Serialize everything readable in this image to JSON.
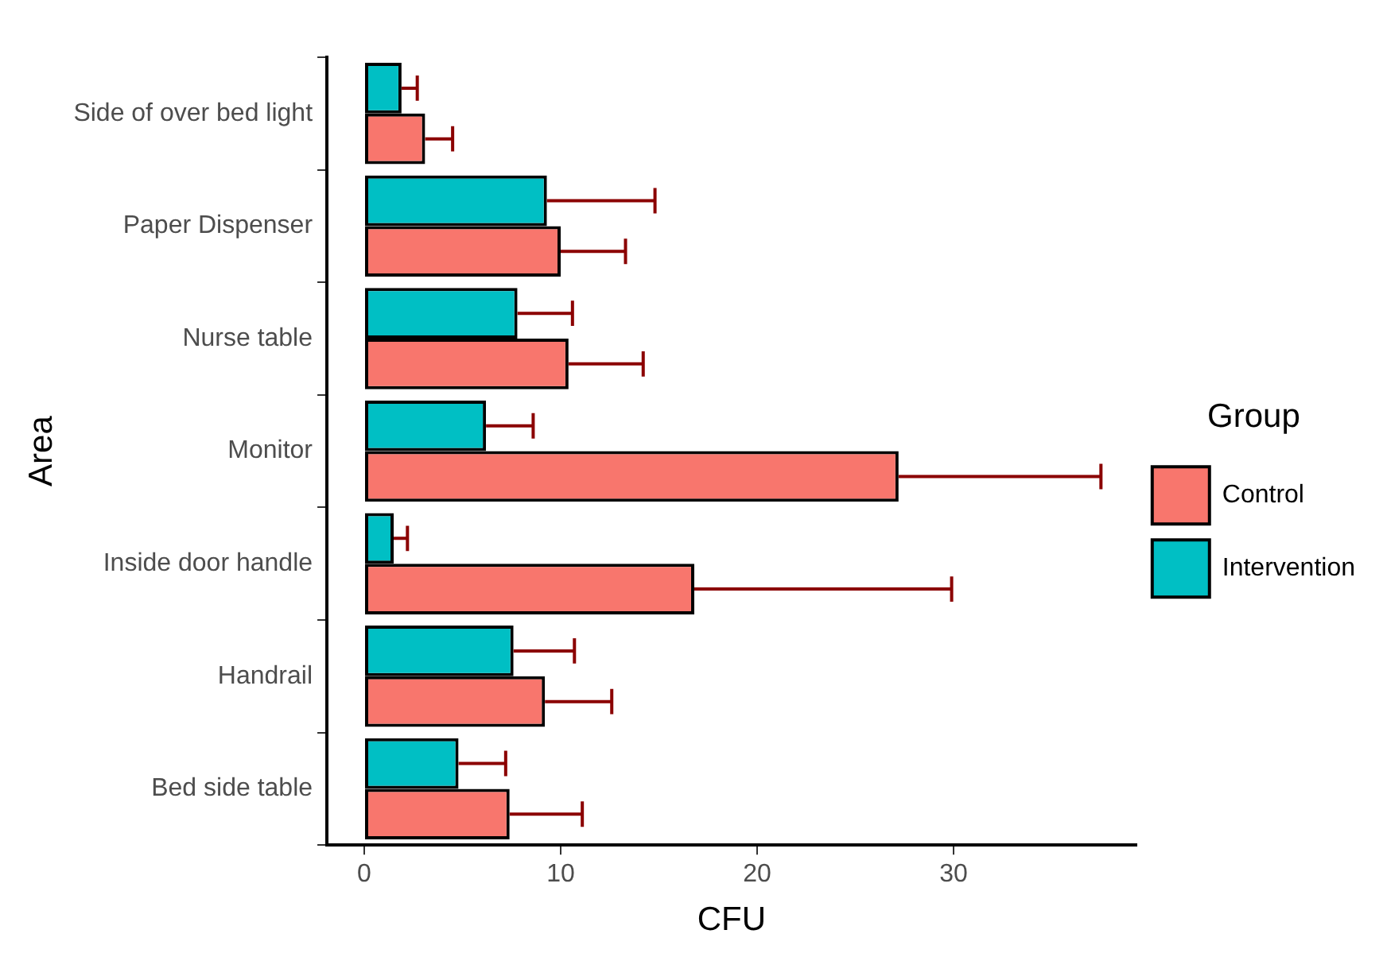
{
  "chart_data": {
    "type": "bar",
    "orientation": "horizontal",
    "xlabel": "CFU",
    "ylabel": "Area",
    "legend_title": "Group",
    "legend": "right",
    "categories": [
      "Side of over bed light",
      "Paper Dispenser",
      "Nurse table",
      "Monitor",
      "Inside door handle",
      "Handrail",
      "Bed side table"
    ],
    "xlim": [
      -1.9,
      39.3
    ],
    "xticks": [
      0,
      10,
      20,
      30
    ],
    "grid": false,
    "series": [
      {
        "name": "Control",
        "color": "#f8766d",
        "values": [
          3.1,
          10.0,
          10.4,
          27.2,
          16.8,
          9.2,
          7.4
        ],
        "errors": [
          [
            3.1,
            4.5
          ],
          [
            10.0,
            13.3
          ],
          [
            10.4,
            14.2
          ],
          [
            27.2,
            37.5
          ],
          [
            16.8,
            29.9
          ],
          [
            9.2,
            12.6
          ],
          [
            7.4,
            11.1
          ]
        ]
      },
      {
        "name": "Intervention",
        "color": "#00bfc4",
        "values": [
          1.9,
          9.3,
          7.8,
          6.2,
          1.5,
          7.6,
          4.8
        ],
        "errors": [
          [
            1.9,
            2.7
          ],
          [
            9.3,
            14.8
          ],
          [
            7.8,
            10.6
          ],
          [
            6.2,
            8.6
          ],
          [
            1.5,
            2.2
          ],
          [
            7.6,
            10.7
          ],
          [
            4.8,
            7.2
          ]
        ]
      }
    ]
  }
}
